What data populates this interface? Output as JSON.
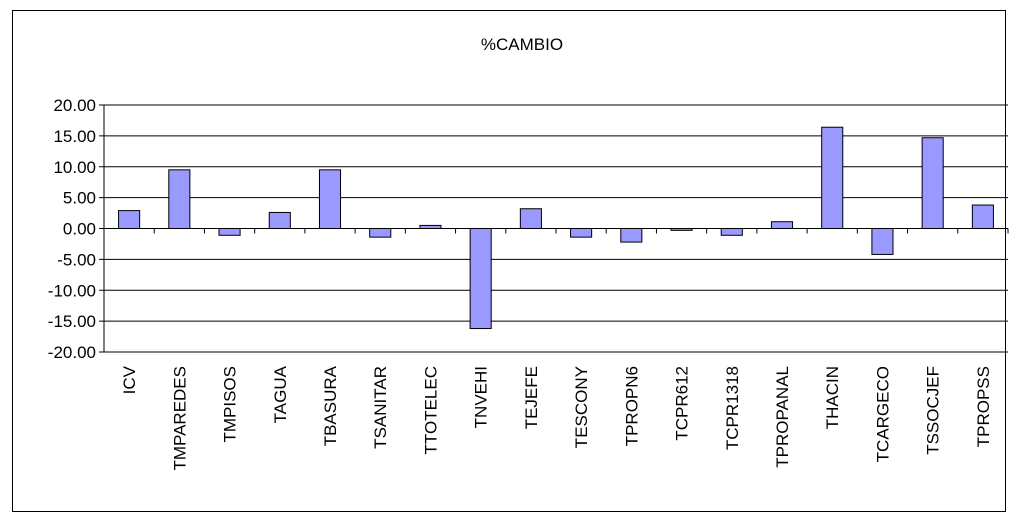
{
  "chart_data": {
    "type": "bar",
    "title": "%CAMBIO",
    "xlabel": "",
    "ylabel": "",
    "ylim": [
      -20,
      20
    ],
    "yticks": [
      "20.00",
      "15.00",
      "10.00",
      "5.00",
      "0.00",
      "-5.00",
      "-10.00",
      "-15.00",
      "-20.00"
    ],
    "grid": true,
    "legend": "none",
    "bar_color": "#9999ff",
    "categories": [
      "ICV",
      "TMPAREDES",
      "TMPISOS",
      "TAGUA",
      "TBASURA",
      "TSANITAR",
      "TTOTELEC",
      "TNVEHI",
      "TEJEFE",
      "TESCONY",
      "TPROPN6",
      "TCPR612",
      "TCPR1318",
      "TPROPANAL",
      "THACIN",
      "TCARGECO",
      "TSSOCJEF",
      "TPROPSS"
    ],
    "values": [
      2.9,
      9.5,
      -1.1,
      2.6,
      9.5,
      -1.4,
      0.5,
      -16.2,
      3.2,
      -1.4,
      -2.2,
      -0.3,
      -1.1,
      1.1,
      16.4,
      -4.2,
      14.7,
      3.8
    ]
  }
}
